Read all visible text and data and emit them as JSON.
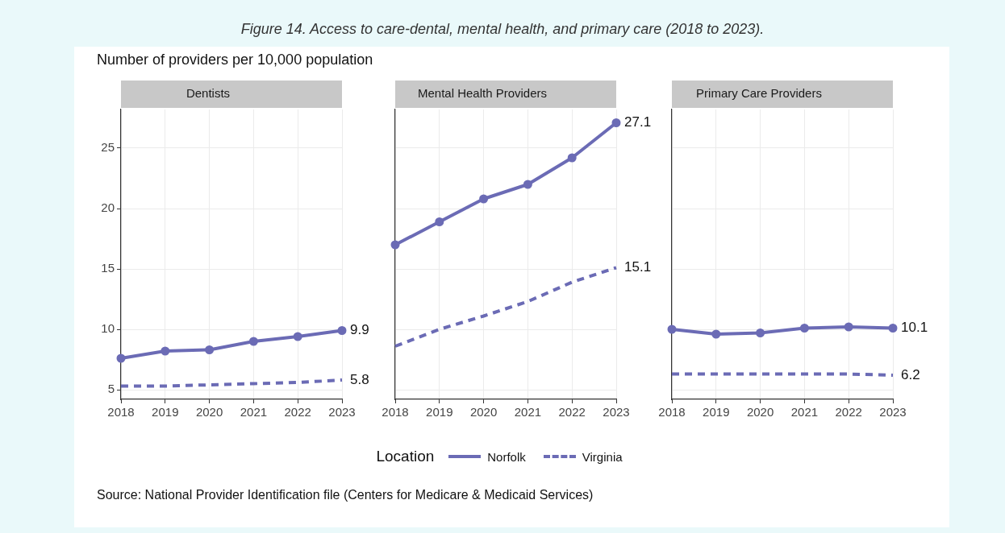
{
  "chart_data": [
    {
      "type": "line",
      "title": "Dentists",
      "ylabel": "Number of providers per 10,000 population",
      "annotations": [
        "Figure 14. Access to care-dental, mental health, and primary care (2018 to 2023)."
      ],
      "categories": [
        "2018",
        "2019",
        "2020",
        "2021",
        "2022",
        "2023"
      ],
      "ylim": [
        4.2,
        28.2
      ],
      "yticks": [
        5,
        10,
        15,
        20,
        25
      ],
      "grid": true,
      "legend": false,
      "series": [
        {
          "color": "#6b6bb5",
          "marker": "circle",
          "line_style": "solid",
          "values": [
            7.6,
            8.2,
            8.3,
            9.0,
            9.4,
            9.9
          ],
          "value_labels": [
            null,
            null,
            null,
            null,
            null,
            "9.9"
          ]
        },
        {
          "color": "#6b6bb5",
          "marker": "none",
          "line_style": "dashed",
          "values": [
            5.3,
            5.3,
            5.4,
            5.5,
            5.6,
            5.8
          ],
          "value_labels": [
            null,
            null,
            null,
            null,
            null,
            "5.8"
          ]
        }
      ]
    },
    {
      "type": "line",
      "title": "Mental Health Providers",
      "legend_title": "Location",
      "categories": [
        "2018",
        "2019",
        "2020",
        "2021",
        "2022",
        "2023"
      ],
      "ylim": [
        4.2,
        28.2
      ],
      "yticks": [
        5,
        10,
        15,
        20,
        25
      ],
      "tick_labels": "x",
      "grid": true,
      "legend": "bottom",
      "series": [
        {
          "name": "Norfolk",
          "color": "#6b6bb5",
          "marker": "circle",
          "line_style": "solid",
          "values": [
            17.0,
            18.9,
            20.8,
            22.0,
            24.2,
            27.1
          ],
          "value_labels": [
            null,
            null,
            null,
            null,
            null,
            "27.1"
          ]
        },
        {
          "name": "Virginia",
          "color": "#6b6bb5",
          "marker": "none",
          "line_style": "dashed",
          "values": [
            8.6,
            10.0,
            11.1,
            12.3,
            13.9,
            15.1
          ],
          "value_labels": [
            null,
            null,
            null,
            null,
            null,
            "15.1"
          ]
        }
      ]
    },
    {
      "type": "line",
      "title": "Primary Care Providers",
      "annotations": [
        "Source: National Provider Identification file (Centers for Medicare & Medicaid Services)"
      ],
      "categories": [
        "2018",
        "2019",
        "2020",
        "2021",
        "2022",
        "2023"
      ],
      "ylim": [
        4.2,
        28.2
      ],
      "yticks": [
        5,
        10,
        15,
        20,
        25
      ],
      "tick_labels": "x",
      "grid": true,
      "legend": false,
      "series": [
        {
          "color": "#6b6bb5",
          "marker": "circle",
          "line_style": "solid",
          "values": [
            10.0,
            9.6,
            9.7,
            10.1,
            10.2,
            10.1
          ],
          "value_labels": [
            null,
            null,
            null,
            null,
            null,
            "10.1"
          ]
        },
        {
          "color": "#6b6bb5",
          "marker": "none",
          "line_style": "dashed",
          "values": [
            6.3,
            6.3,
            6.3,
            6.3,
            6.3,
            6.2
          ],
          "value_labels": [
            null,
            null,
            null,
            null,
            null,
            "6.2"
          ]
        }
      ]
    }
  ]
}
